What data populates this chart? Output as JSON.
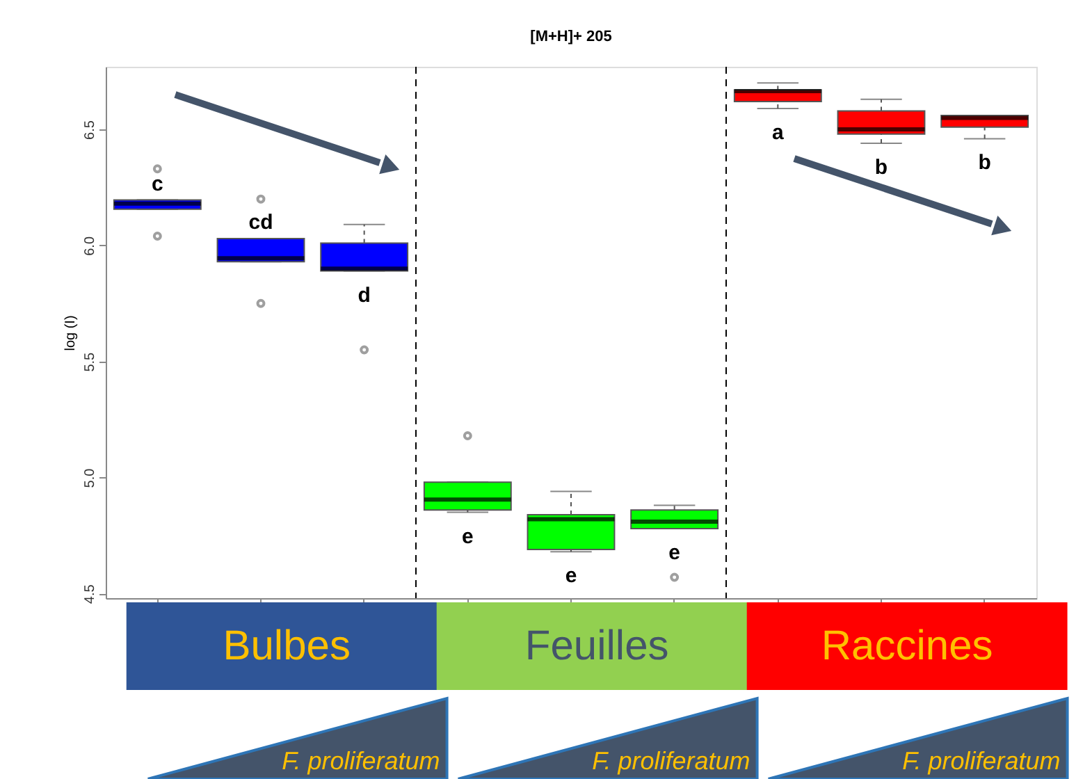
{
  "chart_data": {
    "type": "box",
    "title": "[M+H]+ 205",
    "ylabel": "log (I)",
    "categories": [
      null,
      null,
      null,
      null,
      null,
      null,
      null,
      null,
      null
    ],
    "colors": [
      "#0000ff",
      "#0000ff",
      "#0000ff",
      "#00ff00",
      "#00ff00",
      "#00ff00",
      "#ff0000",
      "#ff0000",
      "#ff0000"
    ],
    "boxes": [
      {
        "low": 6.156,
        "q1": 6.156,
        "median": 6.18,
        "q3": 6.196,
        "high": 6.196,
        "outliers": [
          6.33,
          6.04
        ]
      },
      {
        "low": 5.93,
        "q1": 5.93,
        "median": 5.945,
        "q3": 6.03,
        "high": 6.03,
        "outliers": [
          6.2,
          5.75
        ]
      },
      {
        "low": 5.89,
        "q1": 5.89,
        "median": 5.9,
        "q3": 6.01,
        "high": 6.09,
        "outliers": [
          5.55
        ]
      },
      {
        "low": 4.85,
        "q1": 4.86,
        "median": 4.905,
        "q3": 4.98,
        "high": 4.98,
        "outliers": [
          5.18
        ]
      },
      {
        "low": 4.68,
        "q1": 4.69,
        "median": 4.82,
        "q3": 4.84,
        "high": 4.94
      },
      {
        "low": 4.78,
        "q1": 4.78,
        "median": 4.81,
        "q3": 4.86,
        "high": 4.88,
        "outliers": [
          4.57
        ]
      },
      {
        "low": 6.59,
        "q1": 6.62,
        "median": 6.665,
        "q3": 6.67,
        "high": 6.7
      },
      {
        "low": 6.44,
        "q1": 6.48,
        "median": 6.5,
        "q3": 6.58,
        "high": 6.63
      },
      {
        "low": 6.46,
        "q1": 6.51,
        "median": 6.55,
        "q3": 6.56,
        "high": 6.56
      }
    ],
    "ylim": [
      4.48,
      6.77
    ],
    "yticks": [
      4.5,
      {
        "value": 5,
        "label": "5.0"
      },
      5.5,
      {
        "value": 6,
        "label": "6.0"
      },
      6.5
    ],
    "grid": false,
    "tick_labels": "y",
    "annotations": [
      "c",
      "cd",
      "d",
      "e",
      "e",
      "e",
      "a",
      "b",
      "b",
      "Bulbes",
      "Feuilles",
      "Raccines",
      "F. proliferatum",
      "F. proliferatum",
      "F. proliferatum"
    ]
  }
}
